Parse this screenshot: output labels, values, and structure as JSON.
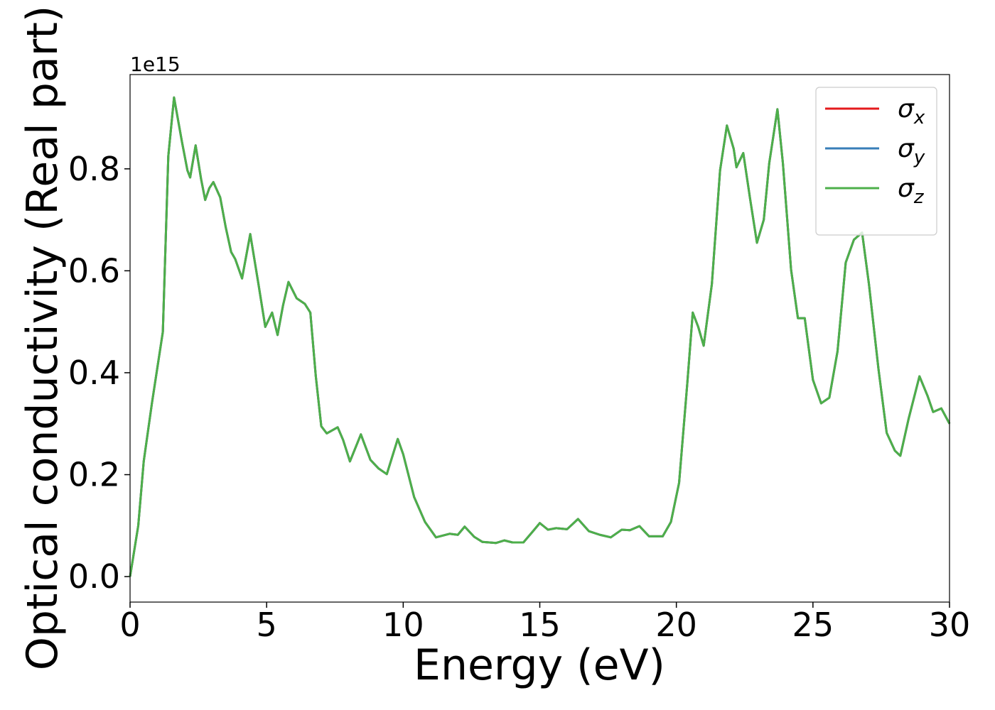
{
  "chart_data": {
    "type": "line",
    "x_label": "Energy (eV)",
    "y_label": "Optical conductivity (Real part)",
    "y_offset_label": "1e15",
    "xlim": [
      0,
      30
    ],
    "ylim": [
      -0.05,
      0.985
    ],
    "xticks": [
      0,
      5,
      10,
      15,
      20,
      25,
      30
    ],
    "yticks": [
      {
        "value": 0,
        "label": "0.0"
      },
      0.2,
      0.4,
      0.6,
      0.8
    ],
    "legend": "upper right",
    "x": [
      0,
      0.3,
      0.5,
      0.8,
      1.0,
      1.2,
      1.4,
      1.61,
      1.9,
      2.1,
      2.2,
      2.4,
      2.6,
      2.75,
      2.9,
      3.05,
      3.3,
      3.5,
      3.7,
      3.85,
      4.1,
      4.4,
      4.7,
      4.95,
      5.2,
      5.4,
      5.6,
      5.8,
      6.1,
      6.4,
      6.6,
      6.8,
      7.0,
      7.2,
      7.6,
      7.8,
      8.05,
      8.45,
      8.8,
      9.1,
      9.4,
      9.8,
      10.0,
      10.4,
      10.8,
      11.2,
      11.7,
      12.0,
      12.25,
      12.6,
      12.9,
      13.4,
      13.7,
      14.0,
      14.4,
      14.75,
      15.0,
      15.3,
      15.6,
      16.0,
      16.4,
      16.8,
      17.2,
      17.6,
      18.0,
      18.3,
      18.65,
      19.0,
      19.5,
      19.8,
      20.1,
      20.4,
      20.6,
      20.8,
      21.0,
      21.3,
      21.6,
      21.85,
      22.1,
      22.2,
      22.45,
      22.7,
      22.95,
      23.2,
      23.4,
      23.7,
      23.9,
      24.2,
      24.45,
      24.7,
      25.0,
      25.3,
      25.6,
      25.9,
      26.2,
      26.5,
      26.8,
      27.05,
      27.4,
      27.7,
      28.0,
      28.2,
      28.5,
      28.9,
      29.2,
      29.4,
      29.7,
      30.0
    ],
    "series": [
      {
        "name": "σx",
        "color": "#e41a1c",
        "values": [
          0.0,
          0.1,
          0.226,
          0.34,
          0.41,
          0.48,
          0.825,
          0.94,
          0.853,
          0.797,
          0.783,
          0.846,
          0.78,
          0.739,
          0.762,
          0.774,
          0.744,
          0.686,
          0.637,
          0.623,
          0.585,
          0.672,
          0.574,
          0.49,
          0.518,
          0.474,
          0.532,
          0.578,
          0.546,
          0.535,
          0.518,
          0.393,
          0.295,
          0.281,
          0.293,
          0.268,
          0.226,
          0.279,
          0.229,
          0.212,
          0.201,
          0.27,
          0.24,
          0.156,
          0.107,
          0.077,
          0.084,
          0.082,
          0.098,
          0.078,
          0.068,
          0.066,
          0.071,
          0.067,
          0.067,
          0.089,
          0.105,
          0.092,
          0.095,
          0.093,
          0.113,
          0.089,
          0.082,
          0.077,
          0.092,
          0.091,
          0.099,
          0.079,
          0.079,
          0.107,
          0.184,
          0.379,
          0.518,
          0.49,
          0.453,
          0.574,
          0.797,
          0.885,
          0.839,
          0.803,
          0.831,
          0.741,
          0.655,
          0.7,
          0.811,
          0.917,
          0.811,
          0.602,
          0.507,
          0.507,
          0.386,
          0.34,
          0.351,
          0.442,
          0.616,
          0.661,
          0.675,
          0.574,
          0.407,
          0.282,
          0.247,
          0.237,
          0.309,
          0.393,
          0.354,
          0.323,
          0.33,
          0.3
        ]
      },
      {
        "name": "σy",
        "color": "#377eb8",
        "values": [
          0.0,
          0.1,
          0.226,
          0.34,
          0.41,
          0.48,
          0.825,
          0.94,
          0.853,
          0.797,
          0.783,
          0.846,
          0.78,
          0.739,
          0.762,
          0.774,
          0.744,
          0.686,
          0.637,
          0.623,
          0.585,
          0.672,
          0.574,
          0.49,
          0.518,
          0.474,
          0.532,
          0.578,
          0.546,
          0.535,
          0.518,
          0.393,
          0.295,
          0.281,
          0.293,
          0.268,
          0.226,
          0.279,
          0.229,
          0.212,
          0.201,
          0.27,
          0.24,
          0.156,
          0.107,
          0.077,
          0.084,
          0.082,
          0.098,
          0.078,
          0.068,
          0.066,
          0.071,
          0.067,
          0.067,
          0.089,
          0.105,
          0.092,
          0.095,
          0.093,
          0.113,
          0.089,
          0.082,
          0.077,
          0.092,
          0.091,
          0.099,
          0.079,
          0.079,
          0.107,
          0.184,
          0.379,
          0.518,
          0.49,
          0.453,
          0.574,
          0.797,
          0.885,
          0.839,
          0.803,
          0.831,
          0.741,
          0.655,
          0.7,
          0.811,
          0.917,
          0.811,
          0.602,
          0.507,
          0.507,
          0.386,
          0.34,
          0.351,
          0.442,
          0.616,
          0.661,
          0.675,
          0.574,
          0.407,
          0.282,
          0.247,
          0.237,
          0.309,
          0.393,
          0.354,
          0.323,
          0.33,
          0.3
        ]
      },
      {
        "name": "σz",
        "color": "#4daf4a",
        "values": [
          0.0,
          0.1,
          0.226,
          0.34,
          0.41,
          0.48,
          0.825,
          0.94,
          0.853,
          0.797,
          0.783,
          0.846,
          0.78,
          0.739,
          0.762,
          0.774,
          0.744,
          0.686,
          0.637,
          0.623,
          0.585,
          0.672,
          0.574,
          0.49,
          0.518,
          0.474,
          0.532,
          0.578,
          0.546,
          0.535,
          0.518,
          0.393,
          0.295,
          0.281,
          0.293,
          0.268,
          0.226,
          0.279,
          0.229,
          0.212,
          0.201,
          0.27,
          0.24,
          0.156,
          0.107,
          0.077,
          0.084,
          0.082,
          0.098,
          0.078,
          0.068,
          0.066,
          0.071,
          0.067,
          0.067,
          0.089,
          0.105,
          0.092,
          0.095,
          0.093,
          0.113,
          0.089,
          0.082,
          0.077,
          0.092,
          0.091,
          0.099,
          0.079,
          0.079,
          0.107,
          0.184,
          0.379,
          0.518,
          0.49,
          0.453,
          0.574,
          0.797,
          0.885,
          0.839,
          0.803,
          0.831,
          0.741,
          0.655,
          0.7,
          0.811,
          0.917,
          0.811,
          0.602,
          0.507,
          0.507,
          0.386,
          0.34,
          0.351,
          0.442,
          0.616,
          0.661,
          0.675,
          0.574,
          0.407,
          0.282,
          0.247,
          0.237,
          0.309,
          0.393,
          0.354,
          0.323,
          0.33,
          0.3
        ]
      }
    ]
  }
}
